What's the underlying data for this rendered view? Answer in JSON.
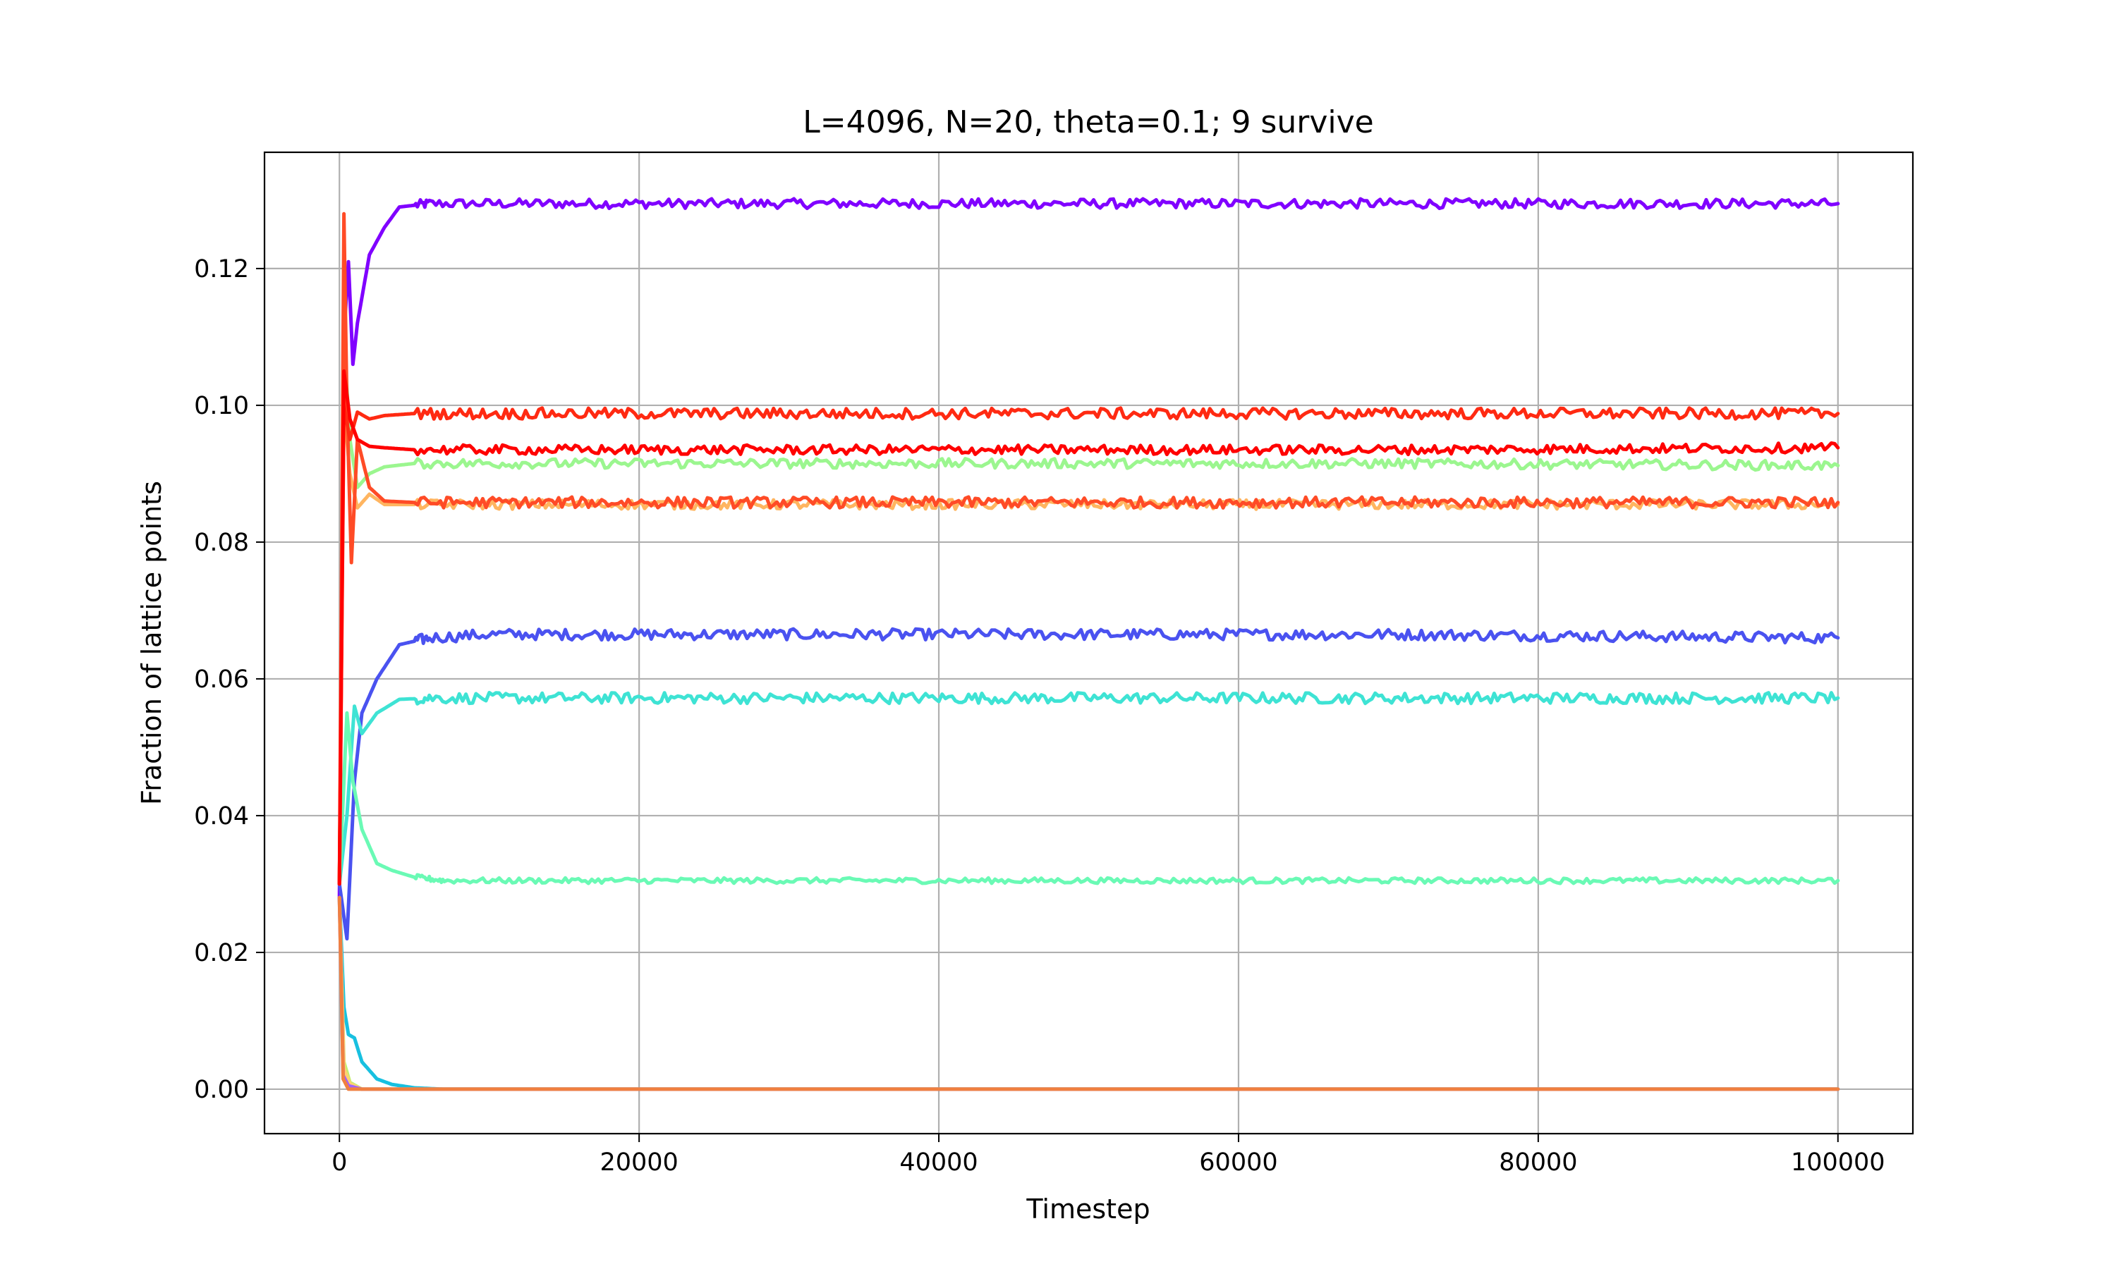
{
  "chart_data": {
    "type": "line",
    "title": "L=4096, N=20, theta=0.1; 9 survive",
    "xlabel": "Timestep",
    "ylabel": "Fraction of lattice points",
    "xlim": [
      -5000,
      105000
    ],
    "ylim": [
      -0.0065,
      0.137
    ],
    "xticks": [
      0,
      20000,
      40000,
      60000,
      80000,
      100000
    ],
    "xtick_labels": [
      "0",
      "20000",
      "40000",
      "60000",
      "80000",
      "100000"
    ],
    "yticks": [
      0.0,
      0.02,
      0.04,
      0.06,
      0.08,
      0.1,
      0.12
    ],
    "ytick_labels": [
      "0.00",
      "0.02",
      "0.04",
      "0.06",
      "0.08",
      "0.10",
      "0.12"
    ],
    "grid": true,
    "legend": "none",
    "series": [
      {
        "color": "#8000ff",
        "x": [
          0,
          300,
          600,
          900,
          1200,
          2000,
          3000,
          4000,
          6000,
          10000,
          20000,
          40000,
          60000,
          80000,
          100000
        ],
        "y": [
          0.028,
          0.11,
          0.121,
          0.106,
          0.112,
          0.122,
          0.126,
          0.129,
          0.1295,
          0.1295,
          0.1295,
          0.1295,
          0.1295,
          0.1295,
          0.1295
        ],
        "noise": 0.0007
      },
      {
        "color": "#4a52f0",
        "x": [
          0,
          500,
          1000,
          1500,
          2500,
          4000,
          6000,
          10000,
          40000,
          70000,
          100000
        ],
        "y": [
          0.03,
          0.022,
          0.045,
          0.055,
          0.06,
          0.065,
          0.066,
          0.0665,
          0.0665,
          0.0665,
          0.066
        ],
        "noise": 0.0008
      },
      {
        "color": "#3ee3d4",
        "x": [
          0,
          500,
          1000,
          1500,
          2500,
          4000,
          6000,
          10000,
          40000,
          70000,
          100000
        ],
        "y": [
          0.03,
          0.04,
          0.056,
          0.052,
          0.055,
          0.057,
          0.0572,
          0.0572,
          0.0572,
          0.0572,
          0.0572
        ],
        "noise": 0.0008
      },
      {
        "color": "#6afab5",
        "x": [
          0,
          500,
          900,
          1500,
          2500,
          3500,
          5000,
          7000,
          10000,
          40000,
          70000,
          100000
        ],
        "y": [
          0.03,
          0.055,
          0.045,
          0.038,
          0.033,
          0.032,
          0.031,
          0.0305,
          0.0305,
          0.0305,
          0.0305,
          0.0305
        ],
        "noise": 0.0004
      },
      {
        "color": "#9bf68f",
        "x": [
          0,
          300,
          700,
          1200,
          2000,
          3000,
          5000,
          10000,
          40000,
          70000,
          100000
        ],
        "y": [
          0.03,
          0.11,
          0.095,
          0.088,
          0.09,
          0.091,
          0.0915,
          0.0915,
          0.0915,
          0.0915,
          0.0912
        ],
        "noise": 0.0007
      },
      {
        "color": "#ffb560",
        "x": [
          0,
          300,
          700,
          1200,
          2000,
          3000,
          5000,
          10000,
          40000,
          70000,
          100000
        ],
        "y": [
          0.03,
          0.1,
          0.09,
          0.085,
          0.087,
          0.0855,
          0.0855,
          0.0855,
          0.0855,
          0.0855,
          0.0855
        ],
        "noise": 0.0007
      },
      {
        "color": "#ff4b26",
        "x": [
          0,
          300,
          500,
          800,
          1200,
          2000,
          3000,
          5000,
          10000,
          40000,
          70000,
          100000
        ],
        "y": [
          0.03,
          0.128,
          0.1,
          0.077,
          0.095,
          0.088,
          0.086,
          0.0858,
          0.0858,
          0.0858,
          0.0858,
          0.0858
        ],
        "noise": 0.0008
      },
      {
        "color": "#ff2a12",
        "x": [
          0,
          300,
          700,
          1200,
          2000,
          3000,
          5000,
          10000,
          40000,
          70000,
          100000
        ],
        "y": [
          0.03,
          0.1,
          0.095,
          0.099,
          0.098,
          0.0985,
          0.0988,
          0.0988,
          0.0988,
          0.0988,
          0.0988
        ],
        "noise": 0.0008
      },
      {
        "color": "#ff0000",
        "x": [
          0,
          300,
          700,
          1200,
          2000,
          3000,
          5000,
          10000,
          40000,
          70000,
          100000
        ],
        "y": [
          0.03,
          0.105,
          0.098,
          0.095,
          0.094,
          0.0938,
          0.0935,
          0.0935,
          0.0935,
          0.0935,
          0.0938
        ],
        "noise": 0.0007
      },
      {
        "color": "#18c0e0",
        "x": [
          0,
          300,
          600,
          1000,
          1500,
          2500,
          3500,
          5000,
          7000,
          100000
        ],
        "y": [
          0.028,
          0.012,
          0.008,
          0.0075,
          0.004,
          0.0015,
          0.0007,
          0.0002,
          0.0,
          0.0
        ],
        "noise": 0.0
      },
      {
        "color": "#c0f070",
        "x": [
          0,
          300,
          700,
          1500,
          100000
        ],
        "y": [
          0.028,
          0.004,
          0.001,
          0.0,
          0.0
        ],
        "noise": 0.0
      },
      {
        "color": "#ffd070",
        "x": [
          0,
          300,
          700,
          1500,
          100000
        ],
        "y": [
          0.028,
          0.003,
          0.0008,
          0.0,
          0.0
        ],
        "noise": 0.0
      },
      {
        "color": "#a060ff",
        "x": [
          0,
          250,
          600,
          1500,
          100000
        ],
        "y": [
          0.028,
          0.002,
          0.0005,
          0.0,
          0.0
        ],
        "noise": 0.0
      },
      {
        "color": "#f08040",
        "x": [
          0,
          250,
          600,
          1500,
          100000
        ],
        "y": [
          0.028,
          0.0015,
          0.0,
          0.0,
          0.0
        ],
        "noise": 0.0
      }
    ]
  }
}
